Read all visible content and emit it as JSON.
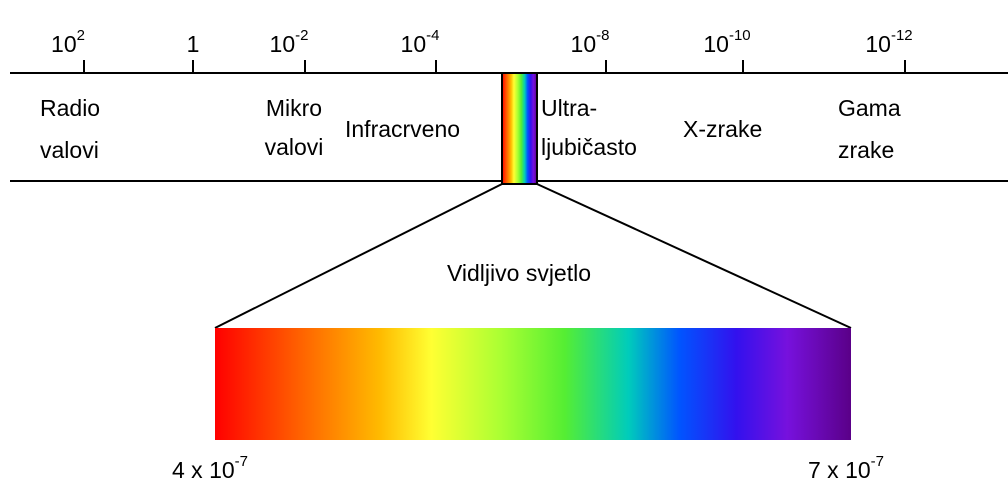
{
  "scale": {
    "ticks": [
      {
        "base": "10",
        "exponent": "2"
      },
      {
        "base": "1"
      },
      {
        "base": "10",
        "exponent": "-2"
      },
      {
        "base": "10",
        "exponent": "-4"
      },
      {
        "base": "10",
        "exponent": "-8"
      },
      {
        "base": "10",
        "exponent": "-10"
      },
      {
        "base": "10",
        "exponent": "-12"
      }
    ]
  },
  "bands": [
    {
      "lines": [
        "Radio",
        "valovi"
      ]
    },
    {
      "lines": [
        "Mikro",
        "valovi"
      ]
    },
    {
      "lines": [
        "Infracrveno"
      ]
    },
    {
      "lines": [
        "Ultra-",
        "ljubičasto"
      ]
    },
    {
      "lines": [
        "X-zrake"
      ]
    },
    {
      "lines": [
        "Gama",
        "zrake"
      ]
    }
  ],
  "visible": {
    "label": "Vidljivo svjetlo",
    "start": {
      "base": "4 x 10",
      "exponent": "-7"
    },
    "end": {
      "base": "7 x 10",
      "exponent": "-7"
    }
  }
}
